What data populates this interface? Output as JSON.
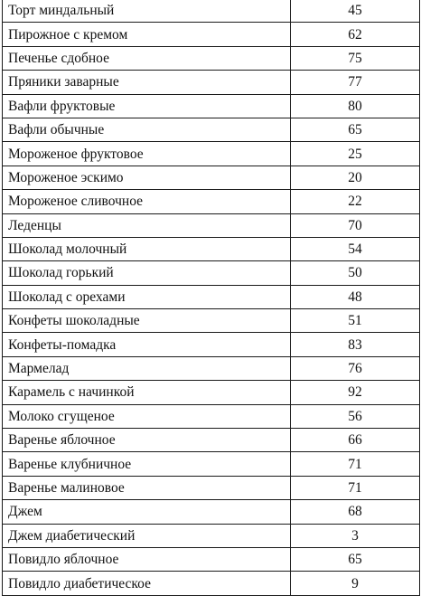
{
  "table": {
    "rows": [
      {
        "name": "Торт миндальный",
        "value": "45"
      },
      {
        "name": "Пирожное с кремом",
        "value": "62"
      },
      {
        "name": "Печенье сдобное",
        "value": "75"
      },
      {
        "name": "Пряники заварные",
        "value": "77"
      },
      {
        "name": "Вафли фруктовые",
        "value": "80"
      },
      {
        "name": "Вафли обычные",
        "value": "65"
      },
      {
        "name": "Мороженое фруктовое",
        "value": "25"
      },
      {
        "name": "Мороженое эскимо",
        "value": "20"
      },
      {
        "name": "Мороженое сливочное",
        "value": "22"
      },
      {
        "name": "Леденцы",
        "value": "70"
      },
      {
        "name": "Шоколад молочный",
        "value": "54"
      },
      {
        "name": "Шоколад горький",
        "value": "50"
      },
      {
        "name": "Шоколад с орехами",
        "value": "48"
      },
      {
        "name": "Конфеты шоколадные",
        "value": "51"
      },
      {
        "name": "Конфеты-помадка",
        "value": "83"
      },
      {
        "name": "Мармелад",
        "value": "76"
      },
      {
        "name": "Карамель с начинкой",
        "value": "92"
      },
      {
        "name": "Молоко сгущеное",
        "value": "56"
      },
      {
        "name": "Варенье яблочное",
        "value": "66"
      },
      {
        "name": "Варенье клубничное",
        "value": "71"
      },
      {
        "name": "Варенье малиновое",
        "value": "71"
      },
      {
        "name": "Джем",
        "value": "68"
      },
      {
        "name": "Джем диабетический",
        "value": "3"
      },
      {
        "name": "Повидло яблочное",
        "value": "65"
      },
      {
        "name": "Повидло диабетическое",
        "value": "9"
      }
    ]
  }
}
